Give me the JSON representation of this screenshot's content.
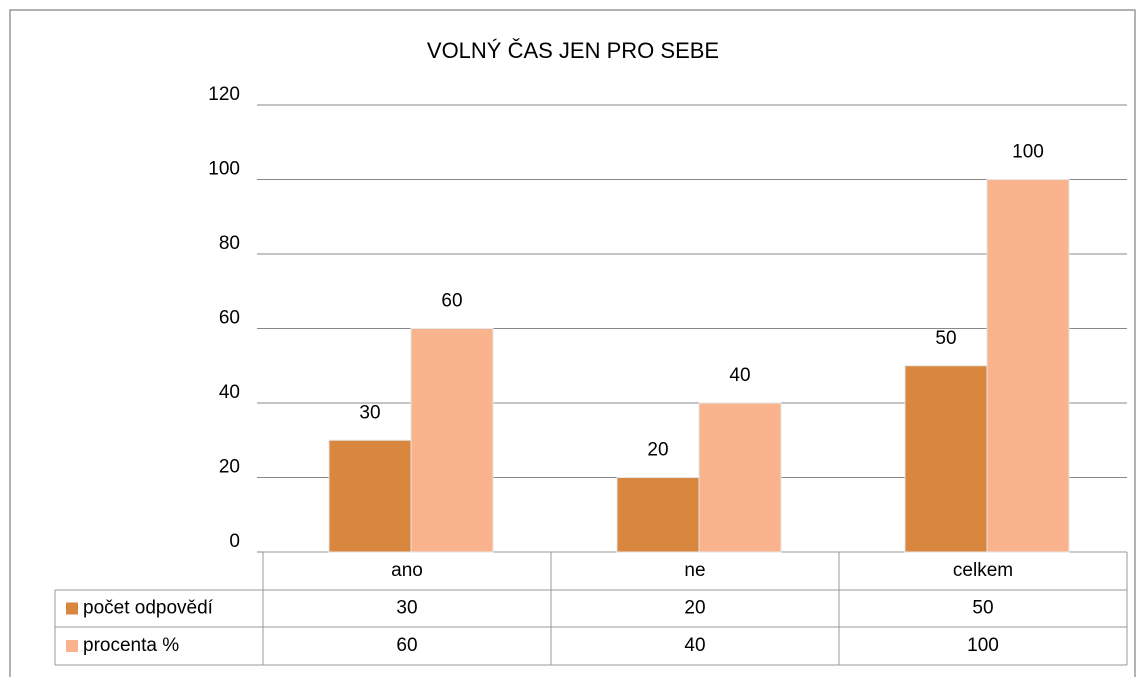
{
  "chart_data": {
    "type": "bar",
    "title": "VOLNÝ ČAS JEN PRO SEBE",
    "categories": [
      "ano",
      "ne",
      "celkem"
    ],
    "series": [
      {
        "name": "počet odpovědí",
        "color": "#d9863e",
        "values": [
          30,
          20,
          50
        ]
      },
      {
        "name": "procenta %",
        "color": "#f9b48e",
        "values": [
          60,
          40,
          100
        ]
      }
    ],
    "ylim": [
      0,
      120
    ],
    "yticks": [
      0,
      20,
      40,
      60,
      80,
      100,
      120
    ],
    "grid": true
  }
}
